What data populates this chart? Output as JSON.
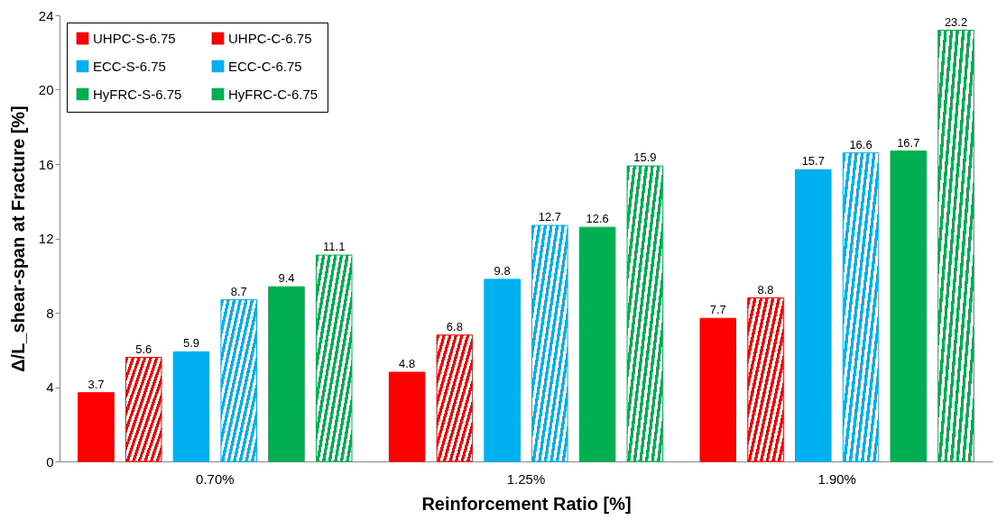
{
  "chart_data": {
    "type": "bar",
    "xlabel": "Reinforcement Ratio [%]",
    "ylabel": "Δ/L_shear-span at Fracture [%]",
    "categories": [
      "0.70%",
      "1.25%",
      "1.90%"
    ],
    "series": [
      {
        "name": "UHPC-S-6.75",
        "color": "#ff0000",
        "values": [
          3.7,
          4.8,
          7.7
        ]
      },
      {
        "name": "UHPC-C-6.75",
        "color": "#ff0000",
        "values": [
          5.6,
          6.8,
          8.8
        ]
      },
      {
        "name": "ECC-S-6.75",
        "color": "#00b0f0",
        "values": [
          5.9,
          9.8,
          15.7
        ]
      },
      {
        "name": "ECC-C-6.75",
        "color": "#00b0f0",
        "values": [
          8.7,
          12.7,
          16.6
        ]
      },
      {
        "name": "HyFRC-S-6.75",
        "color": "#00b050",
        "values": [
          9.4,
          12.6,
          16.7
        ]
      },
      {
        "name": "HyFRC-C-6.75",
        "color": "#00b050",
        "values": [
          11.1,
          15.9,
          23.2
        ]
      }
    ],
    "ylim": [
      0,
      24
    ],
    "yticks": [
      0,
      4,
      8,
      12,
      16,
      20,
      24
    ],
    "grid": false,
    "legend": "top left",
    "data_labels": true
  }
}
